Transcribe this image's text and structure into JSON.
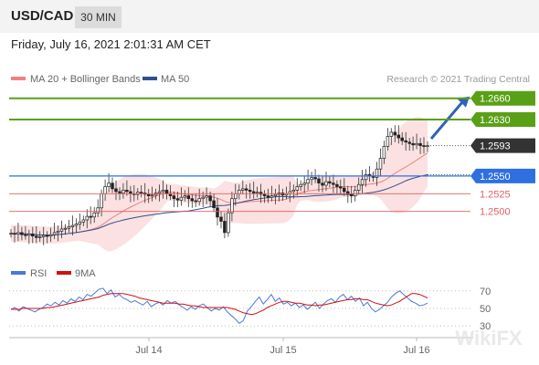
{
  "header": {
    "symbol": "USD/CAD",
    "timeframe": "30 MIN",
    "datetime": "Friday, July 16, 2021 2:01:31 AM CET"
  },
  "legend": {
    "ma20": "MA 20 + Bollinger Bands",
    "ma50": "MA 50",
    "credit": "Research © 2021 Trading Central",
    "rsi": "RSI",
    "ma9": "9MA"
  },
  "watermark": "WikiFX",
  "colors": {
    "ma20": "#f08080",
    "ma50": "#2f4f8f",
    "resistance": "#5aa016",
    "pivot": "#2f6fe0",
    "support": "#e06060",
    "last": "#333333",
    "rsi": "#4a78d8",
    "ma9": "#d01010",
    "band_fill": "#fbdede"
  },
  "chart_data": [
    {
      "type": "candlestick",
      "title": "USD/CAD",
      "x_labels": [
        "Jul 14",
        "Jul 15",
        "Jul 16"
      ],
      "ylim": [
        1.2435,
        1.267
      ],
      "last_price": 1.2593,
      "levels": [
        {
          "label": "1.2660",
          "value": 1.266,
          "kind": "resistance"
        },
        {
          "label": "1.2630",
          "value": 1.263,
          "kind": "resistance"
        },
        {
          "label": "1.2593",
          "value": 1.2593,
          "kind": "last"
        },
        {
          "label": "1.2550",
          "value": 1.255,
          "kind": "pivot"
        },
        {
          "label": "1.2525",
          "value": 1.2525,
          "kind": "support"
        },
        {
          "label": "1.2500",
          "value": 1.25,
          "kind": "support"
        }
      ],
      "close_series": [
        1.2469,
        1.2468,
        1.247,
        1.2467,
        1.2466,
        1.2468,
        1.2465,
        1.2463,
        1.2464,
        1.2466,
        1.2465,
        1.2467,
        1.247,
        1.2472,
        1.2475,
        1.2476,
        1.2478,
        1.248,
        1.2482,
        1.2485,
        1.2488,
        1.2493,
        1.2492,
        1.2498,
        1.2505,
        1.2525,
        1.2535,
        1.254,
        1.2532,
        1.2528,
        1.2526,
        1.253,
        1.2528,
        1.2525,
        1.2524,
        1.2527,
        1.2526,
        1.2524,
        1.2522,
        1.2523,
        1.2526,
        1.2528,
        1.253,
        1.2525,
        1.2522,
        1.2518,
        1.2516,
        1.252,
        1.2522,
        1.2518,
        1.2515,
        1.2514,
        1.2518,
        1.252,
        1.2522,
        1.2515,
        1.2505,
        1.2492,
        1.2486,
        1.247,
        1.2498,
        1.2518,
        1.2525,
        1.253,
        1.2532,
        1.253,
        1.2528,
        1.2526,
        1.2527,
        1.2524,
        1.2522,
        1.252,
        1.2522,
        1.2524,
        1.2526,
        1.2523,
        1.2525,
        1.2528,
        1.253,
        1.2535,
        1.2538,
        1.254,
        1.2545,
        1.2548,
        1.2546,
        1.254,
        1.2537,
        1.2542,
        1.254,
        1.2538,
        1.2535,
        1.2533,
        1.2528,
        1.2524,
        1.2522,
        1.253,
        1.2538,
        1.2545,
        1.2552,
        1.255,
        1.2548,
        1.256,
        1.2575,
        1.2592,
        1.2606,
        1.2612,
        1.2608,
        1.2604,
        1.26,
        1.2598,
        1.2596,
        1.2594,
        1.2596,
        1.2593,
        1.2592,
        1.2593
      ],
      "rsi": {
        "ylim": [
          25,
          75
        ],
        "levels": [
          30,
          50,
          70
        ],
        "series": [
          {
            "name": "RSI",
            "values": [
              49,
              51,
              47,
              52,
              50,
              48,
              46,
              49,
              51,
              55,
              53,
              57,
              54,
              59,
              56,
              61,
              58,
              63,
              60,
              66,
              64,
              68,
              72,
              73,
              67,
              71,
              63,
              66,
              62,
              60,
              57,
              59,
              56,
              54,
              58,
              52,
              55,
              57,
              54,
              59,
              56,
              58,
              54,
              51,
              48,
              52,
              49,
              53,
              55,
              51,
              47,
              50,
              48,
              52,
              46,
              42,
              38,
              33,
              36,
              47,
              52,
              58,
              63,
              55,
              60,
              66,
              58,
              62,
              55,
              57,
              53,
              56,
              51,
              54,
              49,
              53,
              57,
              50,
              55,
              59,
              61,
              57,
              63,
              66,
              60,
              64,
              58,
              62,
              53,
              57,
              50,
              46,
              49,
              53,
              57,
              63,
              67,
              70,
              66,
              62,
              58,
              56,
              53,
              54,
              56
            ]
          },
          {
            "name": "9MA",
            "values": [
              49,
              49,
              49,
              50,
              50,
              50,
              50,
              50,
              50,
              51,
              51,
              52,
              53,
              54,
              55,
              56,
              57,
              58,
              59,
              60,
              61,
              62,
              63,
              65,
              66,
              67,
              67,
              67,
              67,
              66,
              65,
              64,
              62,
              61,
              60,
              59,
              58,
              57,
              56,
              56,
              56,
              56,
              55,
              55,
              54,
              53,
              53,
              52,
              51,
              51,
              51,
              51,
              51,
              51,
              51,
              50,
              49,
              47,
              45,
              44,
              43,
              44,
              46,
              48,
              51,
              53,
              55,
              57,
              58,
              58,
              57,
              56,
              56,
              55,
              54,
              54,
              53,
              54,
              54,
              55,
              56,
              57,
              58,
              59,
              60,
              60,
              61,
              61,
              60,
              60,
              58,
              56,
              55,
              54,
              53,
              54,
              56,
              58,
              61,
              64,
              67,
              67,
              66,
              64,
              62
            ]
          }
        ]
      }
    }
  ]
}
